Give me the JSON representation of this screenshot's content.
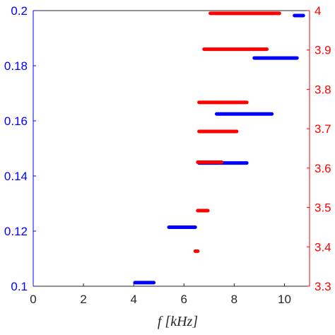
{
  "chart_data": {
    "type": "bar",
    "xlabel": "f [kHz]",
    "xlim": [
      0,
      11
    ],
    "x_ticks": [
      "0",
      "2",
      "4",
      "6",
      "8",
      "10"
    ],
    "y_left": {
      "ylim": [
        0.1,
        0.2
      ],
      "ticks": [
        "0.1",
        "0.12",
        "0.14",
        "0.16",
        "0.18",
        "0.2"
      ],
      "color": "#0000ff"
    },
    "y_right": {
      "ylim": [
        3.3,
        4.0
      ],
      "ticks": [
        "3.3",
        "3.4",
        "3.5",
        "3.6",
        "3.7",
        "3.8",
        "3.9",
        "4"
      ],
      "color": "#ff0000"
    },
    "grid": false,
    "series": [
      {
        "axis": "left",
        "color": "#0000ff",
        "segments": [
          {
            "x": [
              4.05,
              4.8
            ],
            "y": 0.1013
          },
          {
            "x": [
              5.4,
              6.45
            ],
            "y": 0.1214
          },
          {
            "x": [
              6.6,
              8.5
            ],
            "y": 0.1447
          },
          {
            "x": [
              7.3,
              9.5
            ],
            "y": 0.1625
          },
          {
            "x": [
              8.8,
              10.5
            ],
            "y": 0.1828
          },
          {
            "x": [
              10.4,
              10.75
            ],
            "y": 0.1982
          }
        ]
      },
      {
        "axis": "right",
        "color": "#ff0000",
        "segments": [
          {
            "x": [
              6.45,
              6.55
            ],
            "y": 3.389
          },
          {
            "x": [
              6.55,
              6.95
            ],
            "y": 3.492
          },
          {
            "x": [
              6.55,
              7.5
            ],
            "y": 3.615
          },
          {
            "x": [
              6.6,
              8.1
            ],
            "y": 3.693
          },
          {
            "x": [
              6.6,
              8.5
            ],
            "y": 3.767
          },
          {
            "x": [
              6.8,
              9.3
            ],
            "y": 3.902
          },
          {
            "x": [
              7.05,
              9.8
            ],
            "y": 3.993
          }
        ]
      }
    ]
  }
}
